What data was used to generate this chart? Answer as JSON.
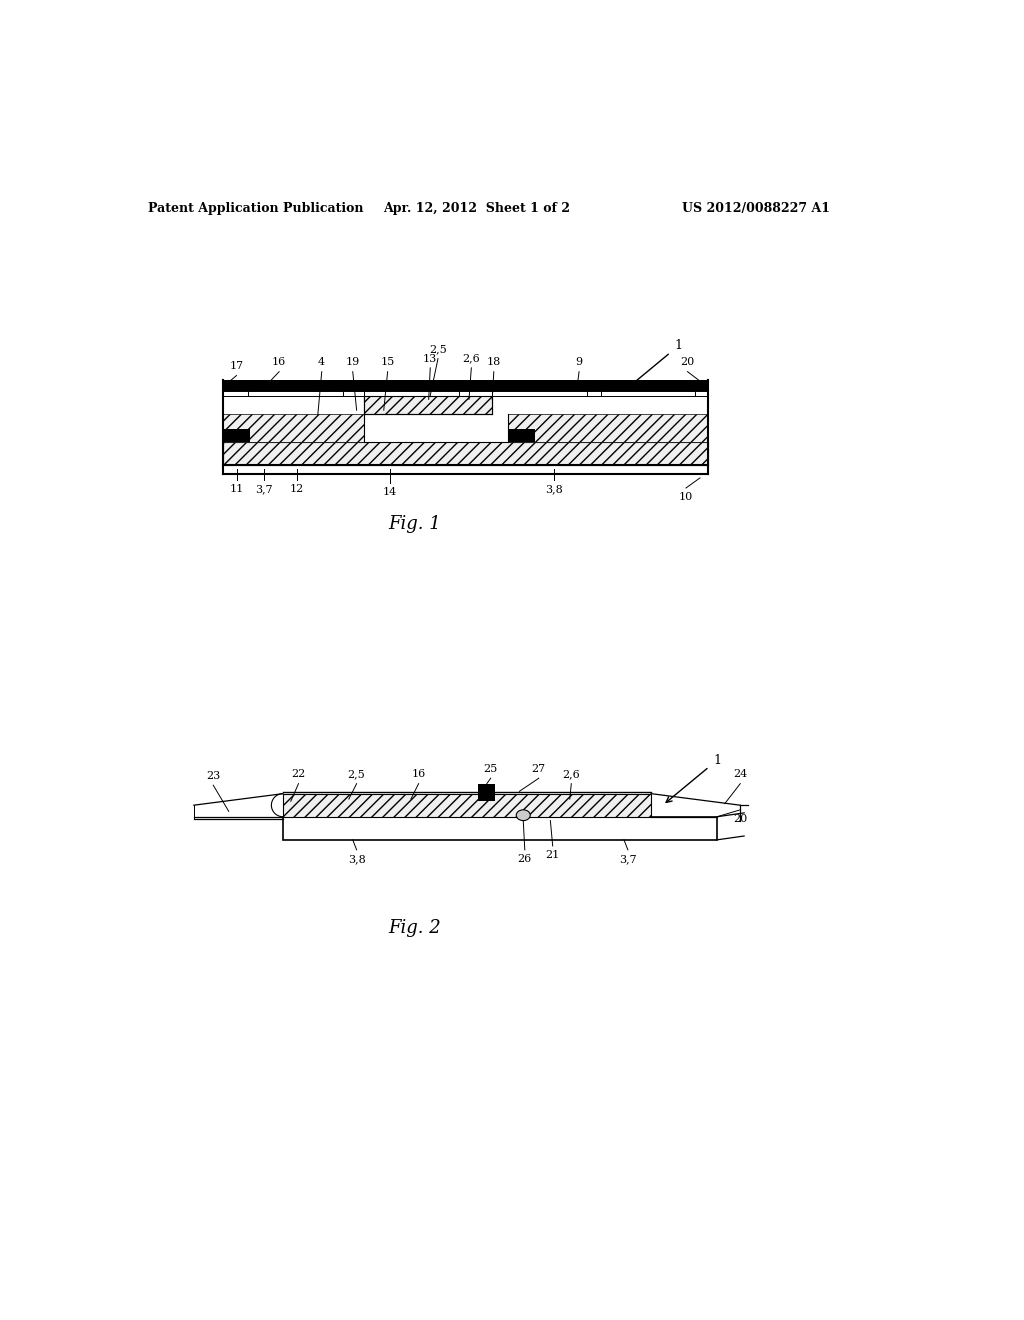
{
  "bg_color": "#ffffff",
  "header_text": "Patent Application Publication",
  "header_date": "Apr. 12, 2012  Sheet 1 of 2",
  "header_patent": "US 2012/0088227 A1",
  "fig1_label": "Fig. 1",
  "fig2_label": "Fig. 2"
}
